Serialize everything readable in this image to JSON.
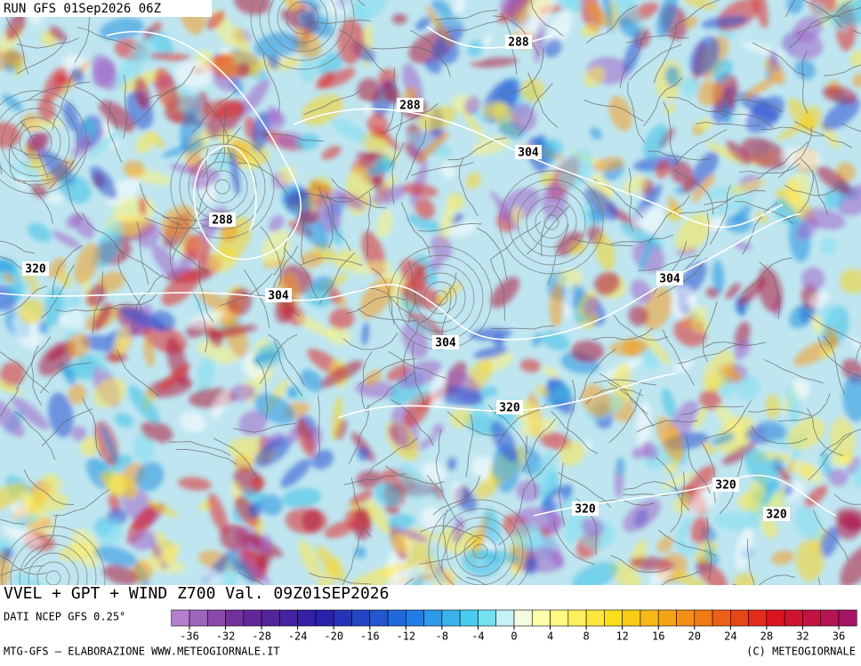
{
  "header": {
    "run": "RUN GFS 01Sep2026 06Z"
  },
  "map": {
    "contour_labels": [
      288,
      288,
      304,
      288,
      320,
      304,
      304,
      304,
      320,
      320,
      320,
      320
    ]
  },
  "title": "VVEL + GPT + WIND Z700 Val. 09Z01SEP2026",
  "legend": {
    "source": "DATI NCEP GFS 0.25°",
    "ticks": [
      -36,
      -32,
      -28,
      -24,
      -20,
      -16,
      -12,
      -8,
      -4,
      0,
      4,
      8,
      12,
      16,
      20,
      24,
      28,
      32,
      36
    ]
  },
  "footer": {
    "left": "MTG-GFS — ELABORAZIONE WWW.METEOGIORNALE.IT",
    "right": "(C) METEOGIORNALE"
  }
}
